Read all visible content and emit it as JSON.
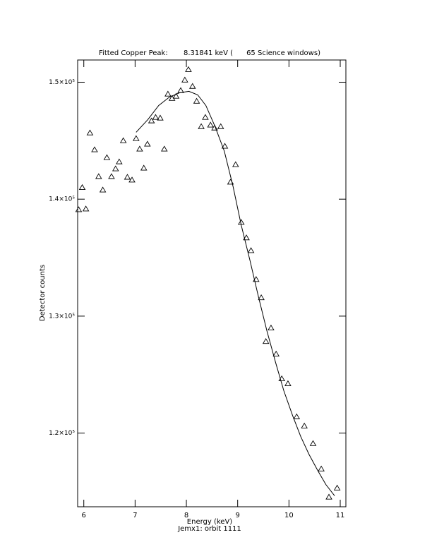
{
  "chart_data": {
    "type": "scatter",
    "title": "Fitted Copper Peak:       8.31841 keV (      65 Science windows)",
    "xlabel": "Energy (keV)",
    "subtitle": "Jemx1: orbit 1111",
    "ylabel": "Detector counts",
    "xlim": [
      5.88,
      11.11
    ],
    "ylim": [
      113700,
      151900
    ],
    "xticks": [
      6,
      7,
      8,
      9,
      10,
      11
    ],
    "yticks": [
      {
        "value": 120000,
        "label": "1.2×10⁵"
      },
      {
        "value": 130000,
        "label": "1.3×10⁵"
      },
      {
        "value": 140000,
        "label": "1.4×10⁵"
      },
      {
        "value": 150000,
        "label": "1.5×10⁵"
      }
    ],
    "color": "#000000",
    "series": [
      {
        "kind": "markers",
        "marker": "triangle",
        "x": [
          5.9,
          5.97,
          6.04,
          6.12,
          6.21,
          6.29,
          6.37,
          6.45,
          6.54,
          6.62,
          6.69,
          6.77,
          6.85,
          6.94,
          7.02,
          7.09,
          7.17,
          7.24,
          7.32,
          7.4,
          7.49,
          7.57,
          7.64,
          7.72,
          7.8,
          7.89,
          7.97,
          8.04,
          8.12,
          8.2,
          8.29,
          8.37,
          8.47,
          8.55,
          8.67,
          8.75,
          8.86,
          8.96,
          9.07,
          9.17,
          9.26,
          9.36,
          9.46,
          9.55,
          9.65,
          9.75,
          9.86,
          9.98,
          10.15,
          10.3,
          10.47,
          10.63,
          10.78,
          10.94
        ],
        "values": [
          139100,
          140990,
          139160,
          145660,
          144220,
          141930,
          140780,
          143550,
          141930,
          142590,
          143190,
          145000,
          141870,
          141630,
          145180,
          144280,
          142650,
          144700,
          146690,
          146990,
          146930,
          144280,
          148980,
          148610,
          148800,
          149280,
          150180,
          151080,
          149640,
          148370,
          146200,
          146990,
          146330,
          146080,
          146200,
          144520,
          141450,
          142950,
          138010,
          136690,
          135600,
          133130,
          131570,
          127830,
          128980,
          126750,
          124640,
          124220,
          121390,
          120600,
          119100,
          116930,
          114520,
          115300
        ]
      },
      {
        "kind": "line",
        "x": [
          7.02,
          7.25,
          7.46,
          7.67,
          7.87,
          8.05,
          8.22,
          8.38,
          8.56,
          8.74,
          8.91,
          9.07,
          9.24,
          9.4,
          9.57,
          9.74,
          9.9,
          10.07,
          10.23,
          10.39,
          10.56,
          10.72,
          10.89
        ],
        "values": [
          145720,
          146810,
          148010,
          148730,
          149100,
          149220,
          148920,
          148010,
          146200,
          144100,
          141090,
          137770,
          134760,
          131750,
          128740,
          126030,
          123620,
          121510,
          119700,
          118190,
          116810,
          115600,
          114640
        ]
      }
    ]
  }
}
